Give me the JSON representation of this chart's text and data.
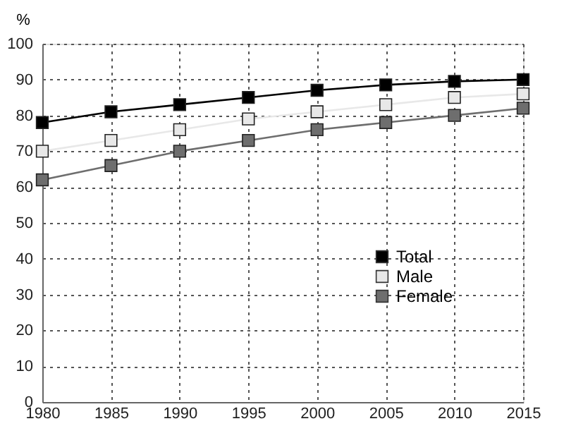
{
  "chart_data": {
    "type": "line",
    "ylabel": "%",
    "x": [
      1980,
      1985,
      1990,
      1995,
      2000,
      2005,
      2010,
      2015
    ],
    "series": [
      {
        "name": "Total",
        "color": "#000000",
        "values": [
          78,
          81,
          83,
          85,
          87,
          88.5,
          89.5,
          90
        ]
      },
      {
        "name": "Male",
        "color": "#e8e8e8",
        "values": [
          70,
          73,
          76,
          79,
          81,
          83,
          85,
          86
        ]
      },
      {
        "name": "Female",
        "color": "#6e6e6e",
        "values": [
          62,
          66,
          70,
          73,
          76,
          78,
          80,
          82
        ]
      }
    ],
    "xlim": [
      1980,
      2015
    ],
    "xticks": [
      1980,
      1985,
      1990,
      1995,
      2000,
      2005,
      2010,
      2015
    ],
    "ylim": [
      0,
      100
    ],
    "yticks": [
      0,
      10,
      20,
      30,
      40,
      50,
      60,
      70,
      80,
      90,
      100
    ],
    "grid": true,
    "legend": "bottom right",
    "marker": "square",
    "line_style": "solid"
  }
}
